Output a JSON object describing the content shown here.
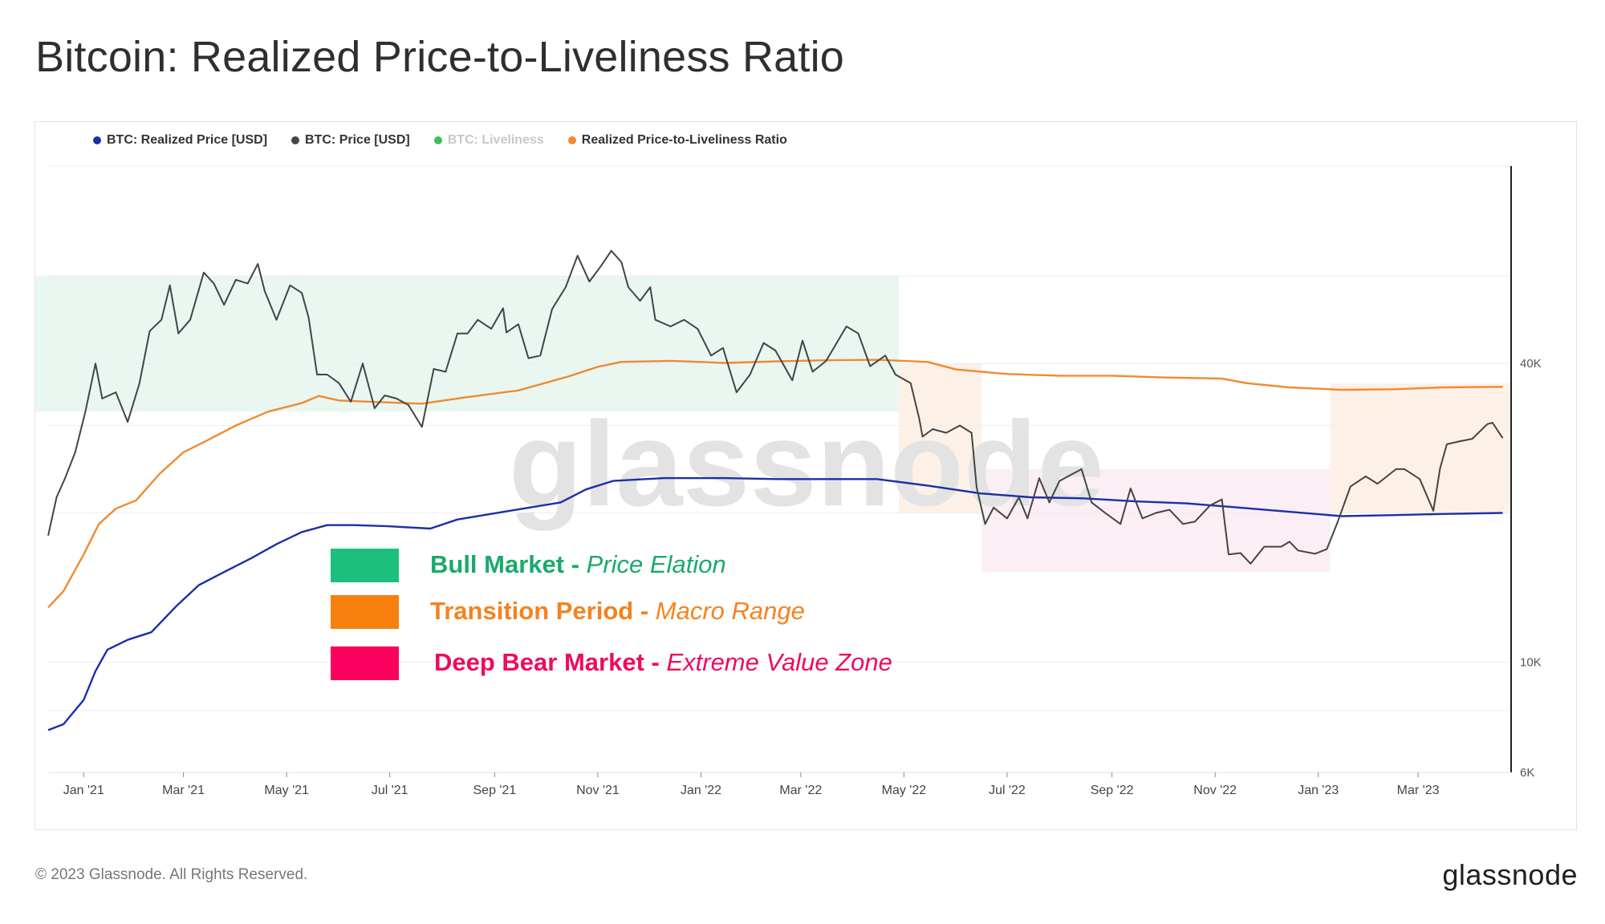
{
  "title": "Bitcoin: Realized Price-to-Liveliness Ratio",
  "legend": [
    {
      "label": "BTC: Realized Price [USD]",
      "color": "#1a2faa",
      "muted": false
    },
    {
      "label": "BTC: Price [USD]",
      "color": "#444444",
      "muted": false
    },
    {
      "label": "BTC: Liveliness",
      "color": "#3bbf5a",
      "muted": true
    },
    {
      "label": "Realized Price-to-Liveliness Ratio",
      "color": "#f08a30",
      "muted": false
    }
  ],
  "annotations": [
    {
      "bold": "Bull Market - ",
      "italic": "Price Elation",
      "color": "#1aaa6b",
      "swatch": "#1dbf7e"
    },
    {
      "bold": "Transition Period - ",
      "italic": "Macro Range",
      "color": "#f5821f",
      "swatch": "#f7800e"
    },
    {
      "bold": "Deep Bear Market - ",
      "italic": "Extreme Value Zone",
      "color": "#ee0a60",
      "swatch": "#fc005f"
    }
  ],
  "watermark": "glassnode",
  "footer": {
    "copyright": "© 2023 Glassnode. All Rights Reserved.",
    "brand": "glassnode"
  },
  "chart_data": {
    "type": "line",
    "title": "Bitcoin: Realized Price-to-Liveliness Ratio",
    "x_ticks": [
      "Jan '21",
      "Mar '21",
      "May '21",
      "Jul '21",
      "Sep '21",
      "Nov '21",
      "Jan '22",
      "Mar '22",
      "May '22",
      "Jul '22",
      "Sep '22",
      "Nov '22",
      "Jan '23",
      "Mar '23"
    ],
    "y_axis": {
      "scale": "log",
      "ticks": [
        "6K",
        "10K",
        "40K"
      ],
      "position": "right"
    },
    "xlim": [
      "2020-12-11",
      "2023-04-25"
    ],
    "ylim": [
      6000,
      100000
    ],
    "grid": true,
    "legend_position": "top-left",
    "series": [
      {
        "name": "BTC: Price [USD]",
        "color": "#444444",
        "points": [
          [
            "2020-12-11",
            18000
          ],
          [
            "2020-12-16",
            21500
          ],
          [
            "2020-12-21",
            23500
          ],
          [
            "2020-12-27",
            26500
          ],
          [
            "2021-01-02",
            32000
          ],
          [
            "2021-01-08",
            40000
          ],
          [
            "2021-01-12",
            34000
          ],
          [
            "2021-01-20",
            35000
          ],
          [
            "2021-01-27",
            30500
          ],
          [
            "2021-02-03",
            36500
          ],
          [
            "2021-02-09",
            46500
          ],
          [
            "2021-02-16",
            49000
          ],
          [
            "2021-02-21",
            57500
          ],
          [
            "2021-02-26",
            46000
          ],
          [
            "2021-03-05",
            49000
          ],
          [
            "2021-03-13",
            61000
          ],
          [
            "2021-03-19",
            58000
          ],
          [
            "2021-03-25",
            52500
          ],
          [
            "2021-04-01",
            59000
          ],
          [
            "2021-04-08",
            58000
          ],
          [
            "2021-04-14",
            63500
          ],
          [
            "2021-04-18",
            56000
          ],
          [
            "2021-04-25",
            49000
          ],
          [
            "2021-05-03",
            57500
          ],
          [
            "2021-05-10",
            55500
          ],
          [
            "2021-05-14",
            49500
          ],
          [
            "2021-05-19",
            38000
          ],
          [
            "2021-05-25",
            38000
          ],
          [
            "2021-06-01",
            36500
          ],
          [
            "2021-06-08",
            33500
          ],
          [
            "2021-06-15",
            40000
          ],
          [
            "2021-06-22",
            32500
          ],
          [
            "2021-06-28",
            34500
          ],
          [
            "2021-07-05",
            34000
          ],
          [
            "2021-07-12",
            33000
          ],
          [
            "2021-07-20",
            29800
          ],
          [
            "2021-07-27",
            39000
          ],
          [
            "2021-08-03",
            38500
          ],
          [
            "2021-08-10",
            46000
          ],
          [
            "2021-08-16",
            46000
          ],
          [
            "2021-08-22",
            49000
          ],
          [
            "2021-08-30",
            47000
          ],
          [
            "2021-09-06",
            51700
          ],
          [
            "2021-09-08",
            46200
          ],
          [
            "2021-09-15",
            48000
          ],
          [
            "2021-09-21",
            41000
          ],
          [
            "2021-09-28",
            41500
          ],
          [
            "2021-10-05",
            51500
          ],
          [
            "2021-10-13",
            57000
          ],
          [
            "2021-10-20",
            66000
          ],
          [
            "2021-10-27",
            58500
          ],
          [
            "2021-11-03",
            63000
          ],
          [
            "2021-11-09",
            67500
          ],
          [
            "2021-11-15",
            64000
          ],
          [
            "2021-11-19",
            57000
          ],
          [
            "2021-11-26",
            53500
          ],
          [
            "2021-12-02",
            57000
          ],
          [
            "2021-12-05",
            49000
          ],
          [
            "2021-12-14",
            47500
          ],
          [
            "2021-12-22",
            49000
          ],
          [
            "2021-12-30",
            47000
          ],
          [
            "2022-01-07",
            41500
          ],
          [
            "2022-01-14",
            43000
          ],
          [
            "2022-01-22",
            35000
          ],
          [
            "2022-01-30",
            38000
          ],
          [
            "2022-02-07",
            44000
          ],
          [
            "2022-02-14",
            42500
          ],
          [
            "2022-02-24",
            37000
          ],
          [
            "2022-03-02",
            44500
          ],
          [
            "2022-03-08",
            38500
          ],
          [
            "2022-03-16",
            40500
          ],
          [
            "2022-03-28",
            47500
          ],
          [
            "2022-04-04",
            46000
          ],
          [
            "2022-04-11",
            39500
          ],
          [
            "2022-04-20",
            41500
          ],
          [
            "2022-04-26",
            38000
          ],
          [
            "2022-05-05",
            36500
          ],
          [
            "2022-05-10",
            31000
          ],
          [
            "2022-05-12",
            28500
          ],
          [
            "2022-05-18",
            29500
          ],
          [
            "2022-05-26",
            29000
          ],
          [
            "2022-06-03",
            30000
          ],
          [
            "2022-06-10",
            29000
          ],
          [
            "2022-06-13",
            22500
          ],
          [
            "2022-06-18",
            19000
          ],
          [
            "2022-06-23",
            20500
          ],
          [
            "2022-07-01",
            19500
          ],
          [
            "2022-07-08",
            21500
          ],
          [
            "2022-07-13",
            19500
          ],
          [
            "2022-07-20",
            23500
          ],
          [
            "2022-07-26",
            21000
          ],
          [
            "2022-08-01",
            23200
          ],
          [
            "2022-08-14",
            24500
          ],
          [
            "2022-08-20",
            21000
          ],
          [
            "2022-08-28",
            20000
          ],
          [
            "2022-09-06",
            19000
          ],
          [
            "2022-09-12",
            22400
          ],
          [
            "2022-09-19",
            19500
          ],
          [
            "2022-09-27",
            20000
          ],
          [
            "2022-10-05",
            20300
          ],
          [
            "2022-10-13",
            19000
          ],
          [
            "2022-10-20",
            19200
          ],
          [
            "2022-10-29",
            20700
          ],
          [
            "2022-11-05",
            21300
          ],
          [
            "2022-11-09",
            16500
          ],
          [
            "2022-11-16",
            16600
          ],
          [
            "2022-11-22",
            15800
          ],
          [
            "2022-11-30",
            17100
          ],
          [
            "2022-12-10",
            17100
          ],
          [
            "2022-12-15",
            17500
          ],
          [
            "2022-12-20",
            16800
          ],
          [
            "2022-12-30",
            16550
          ],
          [
            "2023-01-06",
            16900
          ],
          [
            "2023-01-12",
            19000
          ],
          [
            "2023-01-20",
            22600
          ],
          [
            "2023-01-29",
            23700
          ],
          [
            "2023-02-05",
            22900
          ],
          [
            "2023-02-16",
            24500
          ],
          [
            "2023-02-21",
            24500
          ],
          [
            "2023-03-02",
            23400
          ],
          [
            "2023-03-10",
            20200
          ],
          [
            "2023-03-14",
            24600
          ],
          [
            "2023-03-18",
            27500
          ],
          [
            "2023-03-26",
            27900
          ],
          [
            "2023-04-02",
            28200
          ],
          [
            "2023-04-11",
            30200
          ],
          [
            "2023-04-14",
            30400
          ],
          [
            "2023-04-20",
            28300
          ]
        ]
      },
      {
        "name": "Realized Price-to-Liveliness Ratio",
        "color": "#f08a30",
        "points": [
          [
            "2020-12-11",
            12900
          ],
          [
            "2020-12-20",
            13900
          ],
          [
            "2021-01-01",
            16500
          ],
          [
            "2021-01-10",
            19000
          ],
          [
            "2021-01-20",
            20400
          ],
          [
            "2021-02-01",
            21200
          ],
          [
            "2021-02-15",
            24000
          ],
          [
            "2021-03-01",
            26500
          ],
          [
            "2021-03-15",
            28000
          ],
          [
            "2021-04-01",
            30000
          ],
          [
            "2021-04-20",
            32000
          ],
          [
            "2021-05-10",
            33300
          ],
          [
            "2021-05-20",
            34400
          ],
          [
            "2021-06-01",
            33700
          ],
          [
            "2021-06-20",
            33500
          ],
          [
            "2021-07-20",
            33200
          ],
          [
            "2021-08-15",
            34200
          ],
          [
            "2021-09-15",
            35300
          ],
          [
            "2021-10-15",
            37700
          ],
          [
            "2021-11-01",
            39400
          ],
          [
            "2021-11-15",
            40300
          ],
          [
            "2021-12-15",
            40500
          ],
          [
            "2022-01-15",
            40100
          ],
          [
            "2022-02-15",
            40400
          ],
          [
            "2022-03-15",
            40600
          ],
          [
            "2022-04-15",
            40700
          ],
          [
            "2022-05-15",
            40300
          ],
          [
            "2022-06-01",
            38900
          ],
          [
            "2022-07-01",
            38100
          ],
          [
            "2022-08-01",
            37800
          ],
          [
            "2022-09-01",
            37800
          ],
          [
            "2022-10-01",
            37500
          ],
          [
            "2022-11-05",
            37300
          ],
          [
            "2022-11-20",
            36500
          ],
          [
            "2022-12-15",
            35800
          ],
          [
            "2023-01-15",
            35400
          ],
          [
            "2023-02-15",
            35500
          ],
          [
            "2023-03-15",
            35800
          ],
          [
            "2023-04-20",
            35900
          ]
        ]
      },
      {
        "name": "BTC: Realized Price [USD]",
        "color": "#1a2faa",
        "points": [
          [
            "2020-12-11",
            7300
          ],
          [
            "2020-12-20",
            7500
          ],
          [
            "2021-01-01",
            8400
          ],
          [
            "2021-01-08",
            9600
          ],
          [
            "2021-01-15",
            10600
          ],
          [
            "2021-01-27",
            11100
          ],
          [
            "2021-02-10",
            11500
          ],
          [
            "2021-02-25",
            13000
          ],
          [
            "2021-03-10",
            14300
          ],
          [
            "2021-03-25",
            15200
          ],
          [
            "2021-04-10",
            16200
          ],
          [
            "2021-04-25",
            17300
          ],
          [
            "2021-05-10",
            18300
          ],
          [
            "2021-05-25",
            18900
          ],
          [
            "2021-06-10",
            18900
          ],
          [
            "2021-06-30",
            18800
          ],
          [
            "2021-07-25",
            18600
          ],
          [
            "2021-08-10",
            19400
          ],
          [
            "2021-09-10",
            20200
          ],
          [
            "2021-10-10",
            21000
          ],
          [
            "2021-10-25",
            22300
          ],
          [
            "2021-11-10",
            23200
          ],
          [
            "2021-12-10",
            23500
          ],
          [
            "2022-01-15",
            23500
          ],
          [
            "2022-02-15",
            23400
          ],
          [
            "2022-03-15",
            23400
          ],
          [
            "2022-04-15",
            23400
          ],
          [
            "2022-05-15",
            22700
          ],
          [
            "2022-06-15",
            21900
          ],
          [
            "2022-07-15",
            21500
          ],
          [
            "2022-08-15",
            21400
          ],
          [
            "2022-09-15",
            21100
          ],
          [
            "2022-10-15",
            20900
          ],
          [
            "2022-11-15",
            20500
          ],
          [
            "2022-12-15",
            20100
          ],
          [
            "2023-01-15",
            19700
          ],
          [
            "2023-02-15",
            19800
          ],
          [
            "2023-03-15",
            19900
          ],
          [
            "2023-04-20",
            20000
          ]
        ]
      }
    ],
    "regions": [
      {
        "label": "Bull Market",
        "start": "2020-12-11",
        "end": "2022-04-28",
        "y_range": [
          32000,
          60000
        ],
        "color": "#e9f7f0"
      },
      {
        "label": "Transition Period",
        "start": "2022-04-28",
        "end": "2022-06-16",
        "y_range": [
          20000,
          40000
        ],
        "color": "#fdf1e7"
      },
      {
        "label": "Deep Bear Market",
        "start": "2022-06-16",
        "end": "2023-01-08",
        "y_range": [
          15200,
          24500
        ],
        "color": "#fbeef4"
      },
      {
        "label": "Transition Period",
        "start": "2023-01-08",
        "end": "2023-04-25",
        "y_range": [
          20000,
          36500
        ],
        "color": "#fdf1e7"
      }
    ]
  }
}
